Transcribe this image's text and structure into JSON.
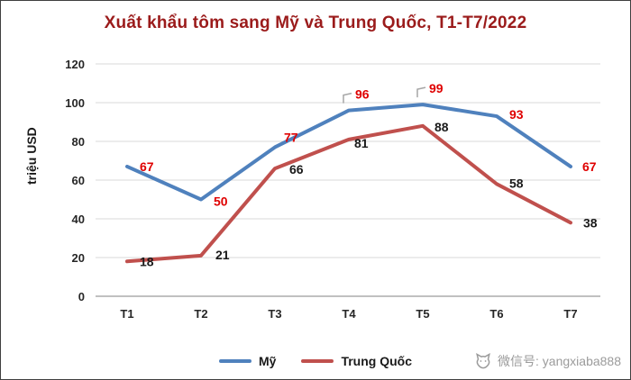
{
  "chart_data": {
    "type": "line",
    "title": "Xuất khẩu tôm sang Mỹ và Trung Quốc, T1-T7/2022",
    "title_color": "#9B1B1B",
    "xlabel": "",
    "ylabel": "triệu USD",
    "categories": [
      "T1",
      "T2",
      "T3",
      "T4",
      "T5",
      "T6",
      "T7"
    ],
    "series": [
      {
        "name": "Mỹ",
        "values": [
          67,
          50,
          77,
          96,
          99,
          93,
          67
        ],
        "color": "#4F81BD",
        "label_color": "#DF0000"
      },
      {
        "name": "Trung Quốc",
        "values": [
          18,
          21,
          66,
          81,
          88,
          58,
          38
        ],
        "color": "#C0504D",
        "label_color": "#1a1a1a"
      }
    ],
    "ylim": [
      0,
      120
    ],
    "ytick_step": 20,
    "grid": true,
    "legend_position": "bottom",
    "callouts": [
      {
        "series": 0,
        "index": 3
      },
      {
        "series": 0,
        "index": 4
      }
    ]
  },
  "watermark": {
    "text": "微信号: yangxiaba888"
  }
}
